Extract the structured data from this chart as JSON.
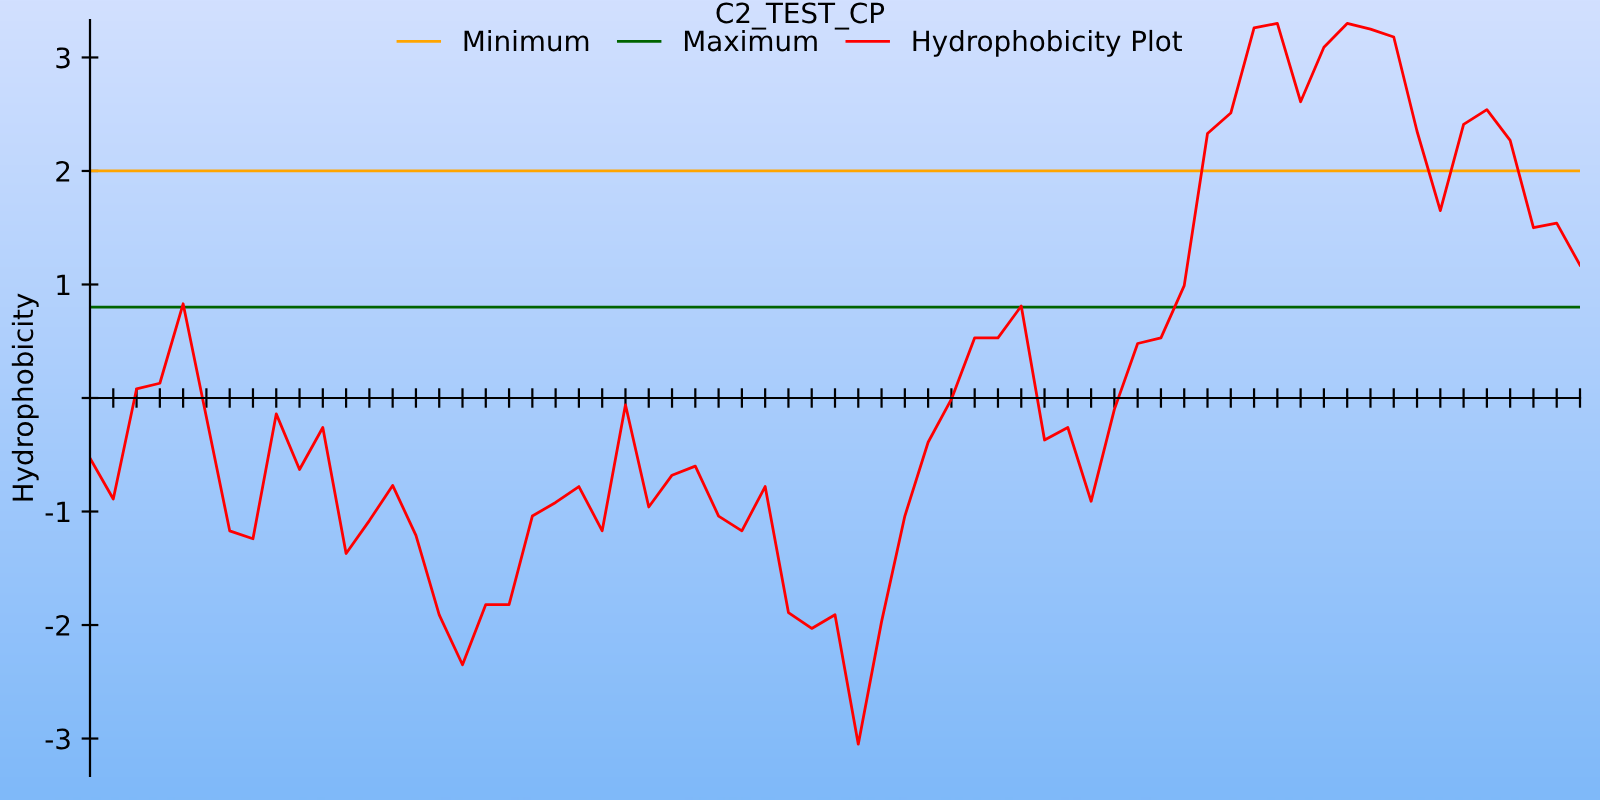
{
  "chart_data": {
    "type": "line",
    "title": "C2_TEST_CP",
    "ylabel": "Hydrophobicity",
    "categories": [
      null,
      null,
      null,
      null,
      null,
      null,
      null,
      null,
      null,
      null,
      null,
      null,
      null,
      null,
      null,
      null,
      null,
      null,
      null,
      null,
      null,
      null,
      null,
      null,
      null,
      null,
      null,
      null,
      null,
      null,
      null,
      null,
      null,
      null,
      null,
      null,
      null,
      null,
      null,
      null,
      null,
      null,
      null,
      null,
      null,
      null,
      null,
      null,
      null,
      null,
      null,
      null,
      null,
      null,
      null,
      null,
      null,
      null,
      null,
      null,
      null,
      null,
      null,
      null,
      null
    ],
    "series": [
      {
        "name": "Minimum",
        "color": "#ffa500",
        "values": [
          2,
          2,
          2,
          2,
          2,
          2,
          2,
          2,
          2,
          2,
          2,
          2,
          2,
          2,
          2,
          2,
          2,
          2,
          2,
          2,
          2,
          2,
          2,
          2,
          2,
          2,
          2,
          2,
          2,
          2,
          2,
          2,
          2,
          2,
          2,
          2,
          2,
          2,
          2,
          2,
          2,
          2,
          2,
          2,
          2,
          2,
          2,
          2,
          2,
          2,
          2,
          2,
          2,
          2,
          2,
          2,
          2,
          2,
          2,
          2,
          2,
          2,
          2,
          2,
          2
        ]
      },
      {
        "name": "Maximum",
        "color": "#006400",
        "values": [
          0.8,
          0.8,
          0.8,
          0.8,
          0.8,
          0.8,
          0.8,
          0.8,
          0.8,
          0.8,
          0.8,
          0.8,
          0.8,
          0.8,
          0.8,
          0.8,
          0.8,
          0.8,
          0.8,
          0.8,
          0.8,
          0.8,
          0.8,
          0.8,
          0.8,
          0.8,
          0.8,
          0.8,
          0.8,
          0.8,
          0.8,
          0.8,
          0.8,
          0.8,
          0.8,
          0.8,
          0.8,
          0.8,
          0.8,
          0.8,
          0.8,
          0.8,
          0.8,
          0.8,
          0.8,
          0.8,
          0.8,
          0.8,
          0.8,
          0.8,
          0.8,
          0.8,
          0.8,
          0.8,
          0.8,
          0.8,
          0.8,
          0.8,
          0.8,
          0.8,
          0.8,
          0.8,
          0.8,
          0.8,
          0.8
        ]
      },
      {
        "name": "Hydrophobicity Plot",
        "color": "#ff0000",
        "values": [
          -0.53,
          -0.89,
          0.08,
          0.13,
          0.83,
          -0.17,
          -1.17,
          -1.24,
          -0.14,
          -0.63,
          -0.26,
          -1.37,
          -1.08,
          -0.77,
          -1.21,
          -1.91,
          -2.35,
          -1.82,
          -1.82,
          -1.04,
          -0.92,
          -0.78,
          -1.17,
          -0.06,
          -0.96,
          -0.68,
          -0.6,
          -1.04,
          -1.17,
          -0.78,
          -1.89,
          -2.03,
          -1.91,
          -3.05,
          -1.97,
          -1.04,
          -0.39,
          -0.01,
          0.53,
          0.53,
          0.81,
          -0.37,
          -0.26,
          -0.91,
          -0.1,
          0.48,
          0.53,
          0.99,
          2.33,
          2.51,
          3.26,
          3.3,
          2.61,
          3.09,
          3.3,
          3.25,
          3.18,
          2.35,
          1.65,
          2.41,
          2.54,
          2.27,
          1.5,
          1.54,
          1.17
        ]
      }
    ],
    "ylim": [
      -3.33,
      3.33
    ],
    "yticks": [
      -3,
      -2,
      -1,
      {
        "value": 0,
        "label": null
      },
      1,
      2,
      3
    ],
    "legend": "top",
    "marker": "none",
    "line_style": "solid"
  }
}
